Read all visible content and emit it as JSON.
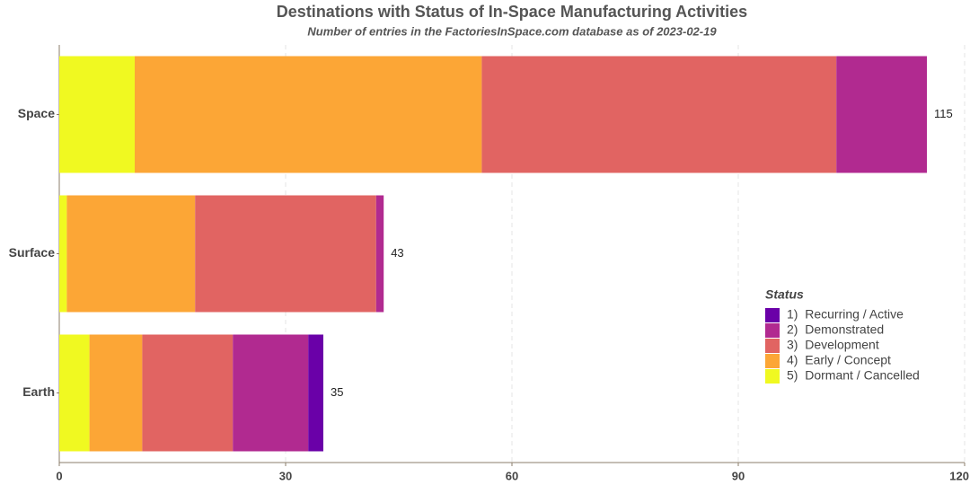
{
  "chart_data": {
    "type": "stacked_barh",
    "title": "Destinations with Status of In-Space Manufacturing Activities",
    "subtitle": "Number of entries in the FactoriesInSpace.com database as of 2023-02-19",
    "categories": [
      "Space",
      "Surface",
      "Earth"
    ],
    "series": [
      {
        "name": "5)  Dormant / Cancelled",
        "color": "#f0f921",
        "values": [
          10,
          1,
          4
        ]
      },
      {
        "name": "4)  Early / Concept",
        "color": "#fca636",
        "values": [
          46,
          17,
          7
        ]
      },
      {
        "name": "3)  Development",
        "color": "#e16462",
        "values": [
          47,
          24,
          12
        ]
      },
      {
        "name": "2)  Demonstrated",
        "color": "#b12a90",
        "values": [
          12,
          1,
          10
        ]
      },
      {
        "name": "1)  Recurring / Active",
        "color": "#6a00a8",
        "values": [
          0,
          0,
          2
        ]
      }
    ],
    "totals": [
      115,
      43,
      35
    ],
    "legend_title": "Status",
    "xlim": [
      0,
      120
    ],
    "xticks": [
      0,
      30,
      60,
      90,
      120
    ],
    "grid": true
  }
}
